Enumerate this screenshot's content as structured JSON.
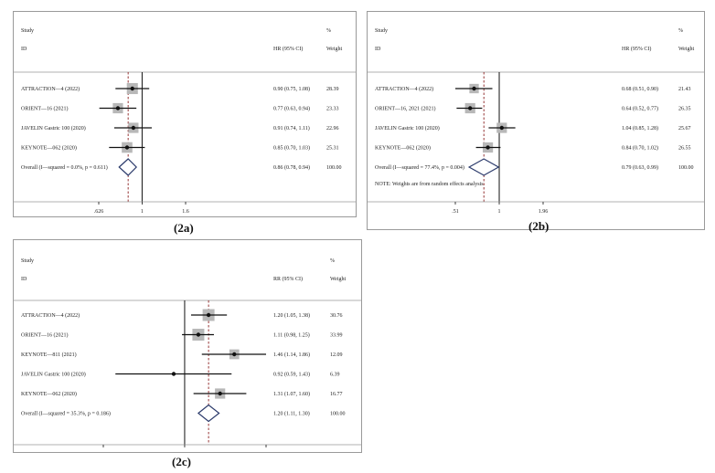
{
  "chart_data": [
    {
      "type": "forest",
      "panel_label": "(2a)",
      "headers": {
        "study": "Study",
        "id": "ID",
        "effect": "HR (95% CI)",
        "pct": "%",
        "weight": "Weight"
      },
      "studies": [
        {
          "name": "ATTRACTION—4 (2022)",
          "est": 0.9,
          "lo": 0.75,
          "hi": 1.08,
          "ci_text": "0.90 (0.75, 1.08)",
          "weight": "28.39",
          "box": 0.9
        },
        {
          "name": "ORIENT—16 (2021)",
          "est": 0.77,
          "lo": 0.63,
          "hi": 0.94,
          "ci_text": "0.77 (0.63, 0.94)",
          "weight": "23.33",
          "box": 0.8
        },
        {
          "name": "JAVELIN Gastric 100 (2020)",
          "est": 0.91,
          "lo": 0.74,
          "hi": 1.11,
          "ci_text": "0.91 (0.74, 1.11)",
          "weight": "22.96",
          "box": 0.8
        },
        {
          "name": "KEYNOTE—062 (2020)",
          "est": 0.85,
          "lo": 0.7,
          "hi": 1.03,
          "ci_text": "0.85 (0.70, 1.03)",
          "weight": "25.31",
          "box": 0.85
        }
      ],
      "overall": {
        "name": "Overall  (I—squared = 0.0%, p = 0.611)",
        "est": 0.86,
        "lo": 0.78,
        "hi": 0.94,
        "ci_text": "0.86 (0.78, 0.94)",
        "weight": "100.00"
      },
      "note": "",
      "ticks": [
        {
          "v": 0.626,
          "label": ".626"
        },
        {
          "v": 1,
          "label": "1"
        },
        {
          "v": 1.6,
          "label": "1.6"
        }
      ],
      "xrange": [
        0.626,
        1.6
      ],
      "log_scale": true
    },
    {
      "type": "forest",
      "panel_label": "(2b)",
      "headers": {
        "study": "Study",
        "id": "ID",
        "effect": "HR (95% CI)",
        "pct": "%",
        "weight": "Weight"
      },
      "studies": [
        {
          "name": "ATTRACTION—4 (2022)",
          "est": 0.68,
          "lo": 0.51,
          "hi": 0.9,
          "ci_text": "0.68 (0.51, 0.90)",
          "weight": "21.43",
          "box": 0.7
        },
        {
          "name": "ORIENT—16, 2021 (2021)",
          "est": 0.64,
          "lo": 0.52,
          "hi": 0.77,
          "ci_text": "0.64 (0.52, 0.77)",
          "weight": "26.35",
          "box": 0.8
        },
        {
          "name": "JAVELIN Gastric 100 (2020)",
          "est": 1.04,
          "lo": 0.85,
          "hi": 1.28,
          "ci_text": "1.04 (0.85, 1.28)",
          "weight": "25.67",
          "box": 0.8
        },
        {
          "name": "KEYNOTE—062 (2020)",
          "est": 0.84,
          "lo": 0.7,
          "hi": 1.02,
          "ci_text": "0.84 (0.70, 1.02)",
          "weight": "26.55",
          "box": 0.8
        }
      ],
      "overall": {
        "name": "Overall  (I—squared = 77.4%, p = 0.004)",
        "est": 0.79,
        "lo": 0.63,
        "hi": 0.99,
        "ci_text": "0.79 (0.63, 0.99)",
        "weight": "100.00"
      },
      "note": "NOTE: Weights are from random effects analysis",
      "ticks": [
        {
          "v": 0.51,
          "label": ".51"
        },
        {
          "v": 1,
          "label": "1"
        },
        {
          "v": 1.96,
          "label": "1.96"
        }
      ],
      "xrange": [
        0.51,
        1.96
      ],
      "log_scale": true
    },
    {
      "type": "forest",
      "panel_label": "(2c)",
      "headers": {
        "study": "Study",
        "id": "ID",
        "effect": "RR (95% CI)",
        "pct": "%",
        "weight": "Weight"
      },
      "studies": [
        {
          "name": "ATTRACTION—4 (2022)",
          "est": 1.2,
          "lo": 1.05,
          "hi": 1.38,
          "ci_text": "1.20 (1.05, 1.38)",
          "weight": "30.76",
          "box": 1.0
        },
        {
          "name": "ORIENT—16 (2021)",
          "est": 1.11,
          "lo": 0.98,
          "hi": 1.25,
          "ci_text": "1.11 (0.98, 1.25)",
          "weight": "33.99",
          "box": 1.0
        },
        {
          "name": "KEYNOTE—811 (2021)",
          "est": 1.46,
          "lo": 1.14,
          "hi": 1.86,
          "ci_text": "1.46 (1.14, 1.86)",
          "weight": "12.09",
          "box": 0.75
        },
        {
          "name": "JAVELIN Gastric 100 (2020)",
          "est": 0.92,
          "lo": 0.59,
          "hi": 1.43,
          "ci_text": "0.92 (0.59, 1.43)",
          "weight": "6.39",
          "box": 0.0
        },
        {
          "name": "KEYNOTE—062 (2020)",
          "est": 1.31,
          "lo": 1.07,
          "hi": 1.6,
          "ci_text": "1.31 (1.07, 1.60)",
          "weight": "16.77",
          "box": 0.8
        }
      ],
      "overall": {
        "name": "Overall  (I—squared = 35.3%, p = 0.186)",
        "est": 1.2,
        "lo": 1.11,
        "hi": 1.3,
        "ci_text": "1.20 (1.11, 1.30)",
        "weight": "100.00"
      },
      "note": "",
      "ticks": [
        {
          "v": 0.538,
          "label": ".538"
        },
        {
          "v": 1,
          "label": "1"
        },
        {
          "v": 1.86,
          "label": "1.86"
        }
      ],
      "xrange": [
        0.538,
        1.86
      ],
      "log_scale": true
    }
  ],
  "colors": {
    "diamond": "#2b3a6b",
    "ref_line": "#8b2020",
    "box": "#b8b8b8",
    "line": "#111111"
  }
}
